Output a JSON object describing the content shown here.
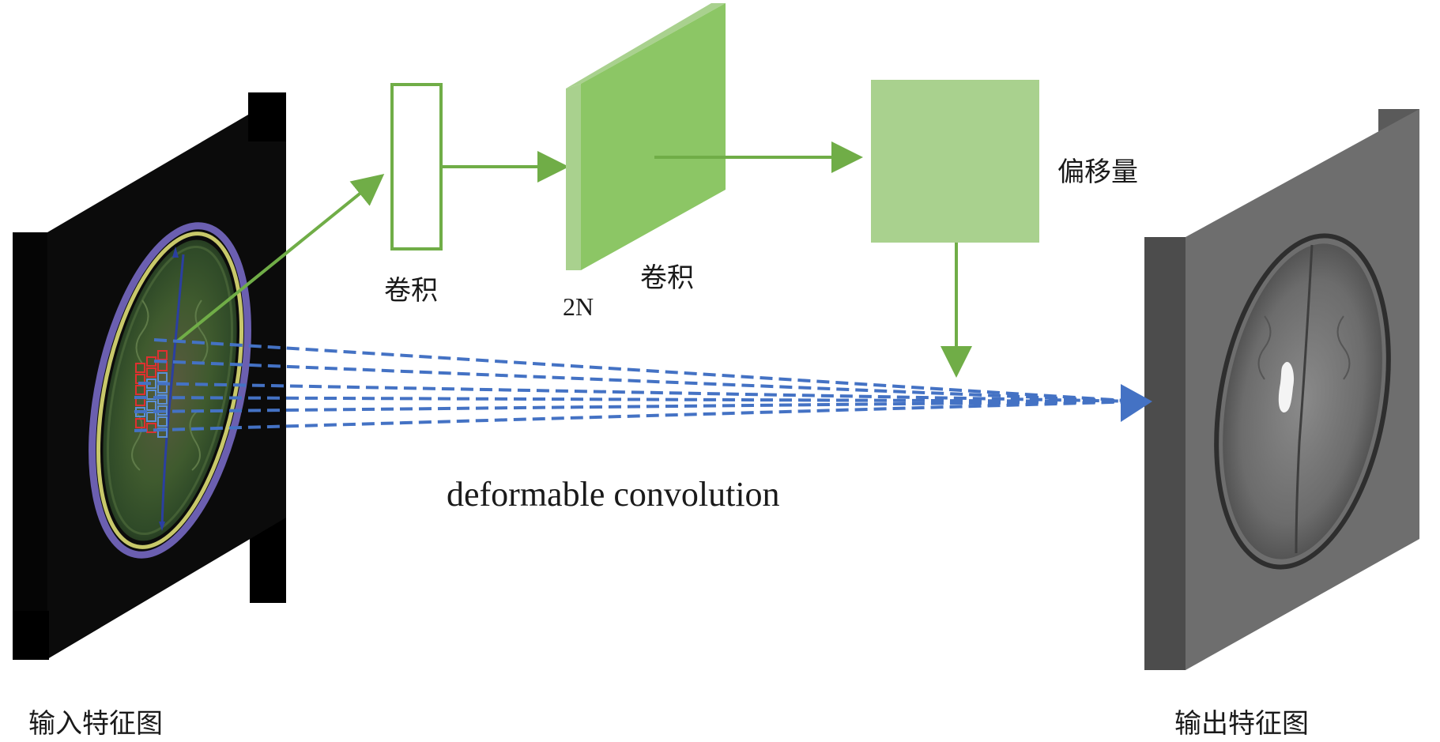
{
  "labels": {
    "input_feature_map": "输入特征图",
    "output_feature_map": "输出特征图",
    "conv_label_1": "卷积",
    "conv_label_2": "卷积",
    "channels": "2N",
    "offset": "偏移量",
    "caption": "deformable convolution"
  },
  "colors": {
    "green_arrow": "#70ad47",
    "green_block": "#8cc665",
    "green_block_side": "#a9d18e",
    "offset_block": "#a9d18e",
    "blue_dashed": "#4472c4",
    "sample_grid_red": "#e03030",
    "sample_grid_blue": "#5b8fd6"
  }
}
